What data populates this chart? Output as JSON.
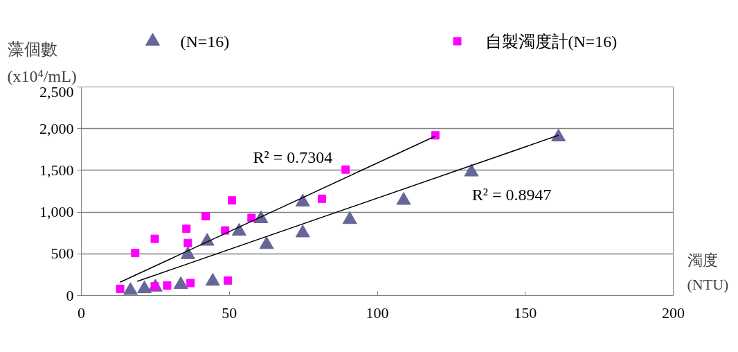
{
  "chart_data": {
    "type": "scatter",
    "ylabel": "藻個數\n(x10⁴/mL)",
    "xlabel": "濁度\n(NTU)",
    "xlim": [
      0,
      200
    ],
    "xticks": [
      0,
      50,
      100,
      150,
      200
    ],
    "ylim": [
      0,
      2500
    ],
    "yticks": [
      {
        "value": 0,
        "label": "0"
      },
      {
        "value": 500,
        "label": "500"
      },
      {
        "value": 1000,
        "label": "1,000"
      },
      {
        "value": 1500,
        "label": "1,500"
      },
      {
        "value": 2000,
        "label": "2,000"
      },
      {
        "value": 2500,
        "label": "2,500"
      }
    ],
    "grid": "y",
    "legend": "top",
    "series": [
      {
        "name": "(N=16)",
        "color": "#666699",
        "marker": "triangle",
        "x": [
          16.6,
          21.3,
          25,
          33.6,
          44.4,
          36,
          42.5,
          53.3,
          60.7,
          74.8,
          62.6,
          74.8,
          90.7,
          108.9,
          131.8,
          161.2
        ],
        "values": [
          60,
          80,
          100,
          130,
          170,
          490,
          650,
          770,
          920,
          1120,
          610,
          750,
          910,
          1140,
          1480,
          1900
        ]
      },
      {
        "name": "自製濁度計(N=16)",
        "color": "#ff00ff",
        "marker": "square",
        "x": [
          13.1,
          18.2,
          24.8,
          24.8,
          29,
          35.5,
          36,
          36.9,
          42,
          48.6,
          49.5,
          50.9,
          57.5,
          81.3,
          89.3,
          119.6
        ],
        "values": [
          80,
          510,
          680,
          110,
          120,
          800,
          630,
          150,
          950,
          780,
          180,
          1140,
          930,
          1160,
          1510,
          1920
        ]
      },
      {
        "type": "line",
        "color": "#000000",
        "marker": "none",
        "x": [
          13.1,
          119.6
        ],
        "values": [
          160,
          1910
        ]
      },
      {
        "type": "line",
        "color": "#000000",
        "marker": "none",
        "x": [
          18.9,
          161.2
        ],
        "values": [
          170,
          1920
        ]
      }
    ],
    "annotations": [
      "R² = 0.7304",
      "R² = 0.8947"
    ]
  }
}
